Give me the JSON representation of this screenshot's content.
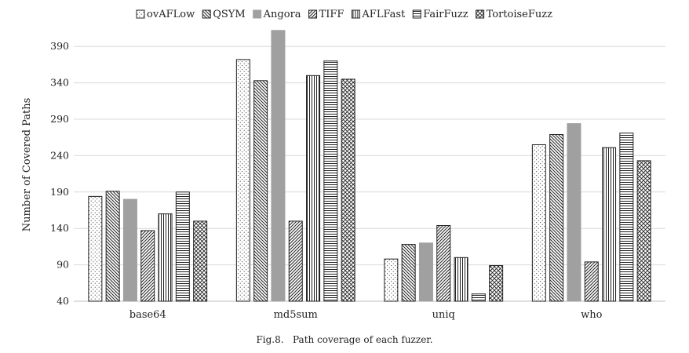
{
  "chart_data": {
    "type": "bar",
    "title": "",
    "xlabel": "",
    "ylabel": "Number of Covered Paths",
    "ylim": [
      40,
      415
    ],
    "yticks": [
      40,
      90,
      140,
      190,
      240,
      290,
      340,
      390
    ],
    "grid": "horizontal",
    "legend_position": "top",
    "categories": [
      "base64",
      "md5sum",
      "uniq",
      "who"
    ],
    "series": [
      {
        "name": "ovAFLow",
        "values": [
          184,
          372,
          98,
          255
        ],
        "pattern": "dots",
        "color": "#ffffff"
      },
      {
        "name": "QSYM",
        "values": [
          191,
          343,
          118,
          269
        ],
        "pattern": "diagonal-down",
        "color": "#ffffff"
      },
      {
        "name": "Angora",
        "values": [
          180,
          412,
          120,
          284
        ],
        "pattern": "solid",
        "color": "#a0a0a0"
      },
      {
        "name": "TIFF",
        "values": [
          137,
          150,
          144,
          94
        ],
        "pattern": "diagonal-up",
        "color": "#ffffff"
      },
      {
        "name": "AFLFast",
        "values": [
          160,
          350,
          100,
          251
        ],
        "pattern": "vertical",
        "color": "#ffffff"
      },
      {
        "name": "FairFuzz",
        "values": [
          190,
          370,
          50,
          271
        ],
        "pattern": "horizontal",
        "color": "#ffffff"
      },
      {
        "name": "TortoiseFuzz",
        "values": [
          150,
          345,
          89,
          233
        ],
        "pattern": "crosshatch",
        "color": "#ffffff"
      }
    ]
  },
  "caption": {
    "label": "Fig.8.",
    "text": "Path coverage of each fuzzer."
  }
}
